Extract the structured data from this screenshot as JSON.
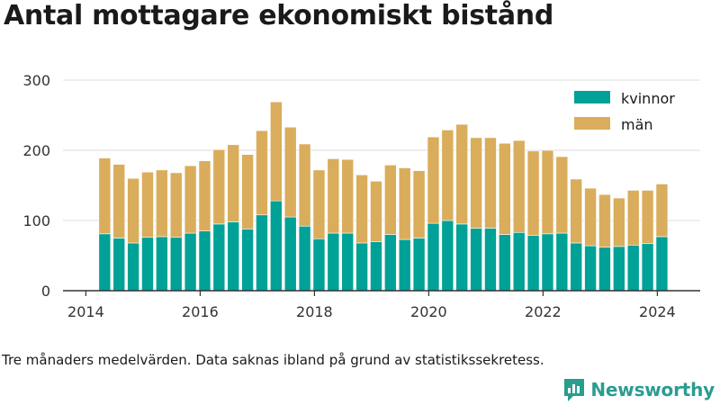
{
  "title": "Antal mottagare ekonomiskt bistånd",
  "footnote": "Tre månaders medelvärden. Data saknas ibland på grund av statistikssekretess.",
  "brand": "Newsworthy",
  "colors": {
    "kvinnor": "#00a196",
    "man": "#d9ad5c",
    "grid": "#dddddd",
    "axis": "#333333",
    "brand": "#2a9d8f"
  },
  "chart_data": {
    "type": "bar",
    "stacked": true,
    "title": "Antal mottagare ekonomiskt bistånd",
    "xlabel": "",
    "ylabel": "",
    "ylim": [
      0,
      300
    ],
    "yticks": [
      0,
      100,
      200,
      300
    ],
    "xlim": [
      2013.6,
      2024.75
    ],
    "xticks": [
      2014,
      2016,
      2018,
      2020,
      2022,
      2024
    ],
    "grid": "horizontal",
    "legend": "top-right",
    "x": [
      2014.33,
      2014.58,
      2014.83,
      2015.08,
      2015.33,
      2015.58,
      2015.83,
      2016.08,
      2016.33,
      2016.58,
      2016.83,
      2017.08,
      2017.33,
      2017.58,
      2017.83,
      2018.08,
      2018.33,
      2018.58,
      2018.83,
      2019.08,
      2019.33,
      2019.58,
      2019.83,
      2020.08,
      2020.33,
      2020.58,
      2020.83,
      2021.08,
      2021.33,
      2021.58,
      2021.83,
      2022.08,
      2022.33,
      2022.58,
      2022.83,
      2023.08,
      2023.33,
      2023.58,
      2023.83,
      2024.08
    ],
    "series": [
      {
        "name": "kvinnor",
        "values": [
          81,
          75,
          68,
          76,
          77,
          76,
          82,
          85,
          95,
          98,
          88,
          108,
          128,
          105,
          92,
          74,
          82,
          82,
          68,
          70,
          80,
          73,
          75,
          96,
          100,
          95,
          89,
          89,
          80,
          83,
          79,
          81,
          82,
          68,
          64,
          62,
          63,
          65,
          67,
          77
        ]
      },
      {
        "name": "män",
        "values": [
          108,
          105,
          92,
          93,
          95,
          92,
          96,
          100,
          106,
          110,
          106,
          120,
          141,
          128,
          117,
          98,
          106,
          105,
          97,
          86,
          99,
          102,
          96,
          123,
          129,
          142,
          129,
          129,
          130,
          131,
          120,
          119,
          109,
          91,
          82,
          75,
          69,
          78,
          76,
          75
        ]
      }
    ]
  }
}
